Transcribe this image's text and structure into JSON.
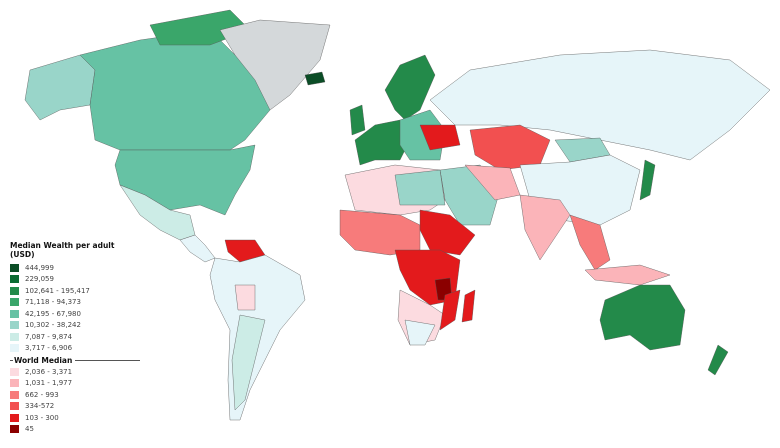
{
  "legend": {
    "title": "Median Wealth per adult (USD)",
    "world_median_label": "World Median",
    "above": [
      {
        "label": "444,999",
        "color": "#0b4d26"
      },
      {
        "label": "229,059",
        "color": "#0a6b32"
      },
      {
        "label": "102,641 - 195,417",
        "color": "#238a4a"
      },
      {
        "label": "71,118 - 94,373",
        "color": "#3aa66a"
      },
      {
        "label": "42,195 - 67,980",
        "color": "#66c2a4"
      },
      {
        "label": "10,302 - 38,242",
        "color": "#99d5c9"
      },
      {
        "label": "7,087 - 9,874",
        "color": "#ccece6"
      },
      {
        "label": "3,717 - 6,906",
        "color": "#e6f5f9"
      }
    ],
    "below": [
      {
        "label": "2,036 - 3,371",
        "color": "#fcdbe0"
      },
      {
        "label": "1,031 - 1,977",
        "color": "#fbb4b9"
      },
      {
        "label": "662 - 993",
        "color": "#f77b7b"
      },
      {
        "label": "334-572",
        "color": "#f25050"
      },
      {
        "label": "103 - 300",
        "color": "#e31a1c"
      },
      {
        "label": "45",
        "color": "#8b0000"
      }
    ]
  },
  "no_data_color": "#d4d8da"
}
